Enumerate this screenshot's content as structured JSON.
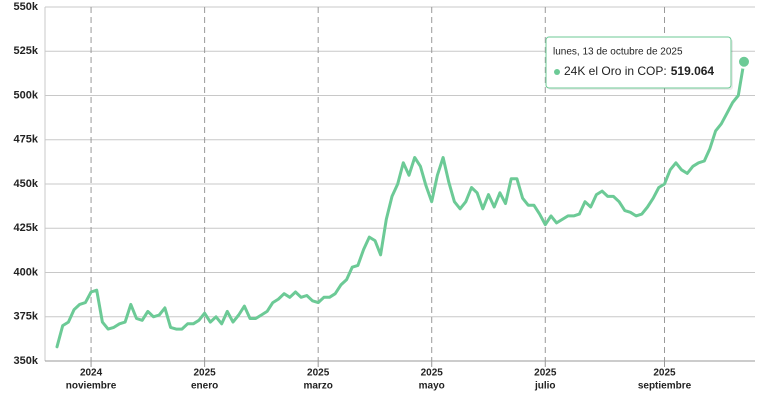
{
  "chart_data": {
    "type": "line",
    "categories": [
      null,
      null,
      null,
      null,
      null,
      null,
      [
        "2024",
        "noviembre"
      ],
      null,
      null,
      null,
      null,
      null,
      null,
      null,
      null,
      null,
      null,
      null,
      null,
      null,
      null,
      null,
      null,
      null,
      null,
      null,
      [
        "2025",
        "enero"
      ],
      null,
      null,
      null,
      null,
      null,
      null,
      null,
      null,
      null,
      null,
      null,
      null,
      null,
      null,
      null,
      null,
      null,
      null,
      null,
      [
        "2025",
        "marzo"
      ],
      null,
      null,
      null,
      null,
      null,
      null,
      null,
      null,
      null,
      null,
      null,
      null,
      null,
      null,
      null,
      null,
      null,
      null,
      null,
      [
        "2025",
        "mayo"
      ],
      null,
      null,
      null,
      null,
      null,
      null,
      null,
      null,
      null,
      null,
      null,
      null,
      null,
      null,
      null,
      null,
      null,
      null,
      null,
      [
        "2025",
        "julio"
      ],
      null,
      null,
      null,
      null,
      null,
      null,
      null,
      null,
      null,
      null,
      null,
      null,
      null,
      null,
      null,
      null,
      null,
      null,
      null,
      null,
      [
        "2025",
        "septiembre"
      ],
      null,
      null,
      null,
      null,
      null,
      null,
      null,
      null,
      null,
      null,
      null,
      null,
      null,
      null
    ],
    "series": [
      {
        "color": "#6cca96",
        "values": [
          358000,
          370000,
          372000,
          379000,
          382000,
          383000,
          389000,
          390000,
          372000,
          368000,
          369000,
          371000,
          372000,
          382000,
          374000,
          373000,
          378000,
          375000,
          376000,
          380000,
          369000,
          368000,
          368000,
          371000,
          371000,
          373000,
          377000,
          372000,
          375000,
          371000,
          378000,
          372000,
          376000,
          381000,
          374000,
          374000,
          376000,
          378000,
          383000,
          385000,
          388000,
          386000,
          389000,
          386000,
          387000,
          384000,
          383000,
          386000,
          386000,
          388000,
          393000,
          396000,
          403000,
          404000,
          413000,
          420000,
          418000,
          410000,
          430000,
          443000,
          450000,
          462000,
          455000,
          465000,
          460000,
          449000,
          440000,
          455000,
          465000,
          451000,
          440000,
          436000,
          440000,
          448000,
          445000,
          436000,
          444000,
          437000,
          445000,
          439000,
          453000,
          453000,
          442000,
          438000,
          438000,
          433000,
          427000,
          432000,
          428000,
          430000,
          432000,
          432000,
          433000,
          440000,
          437000,
          444000,
          446000,
          443000,
          443000,
          440000,
          435000,
          434000,
          432000,
          433000,
          437000,
          442000,
          448000,
          450000,
          458000,
          462000,
          458000,
          456000,
          460000,
          462000,
          463000,
          470000,
          480000,
          484000,
          490000,
          496000,
          500000,
          519064
        ]
      }
    ],
    "ylim": [
      350000,
      550000
    ],
    "yticks": [
      {
        "value": 350000,
        "label": "350k"
      },
      {
        "value": 375000,
        "label": "375k"
      },
      {
        "value": 400000,
        "label": "400k"
      },
      {
        "value": 425000,
        "label": "425k"
      },
      {
        "value": 450000,
        "label": "450k"
      },
      {
        "value": 475000,
        "label": "475k"
      },
      {
        "value": 500000,
        "label": "500k"
      },
      {
        "value": 525000,
        "label": "525k"
      },
      {
        "value": 550000,
        "label": "550k"
      }
    ],
    "grid": true,
    "tooltip": {
      "title": "lunes, 13 de octubre de 2025",
      "label": "24K el Oro in COP:",
      "value_label": "519.064"
    }
  }
}
